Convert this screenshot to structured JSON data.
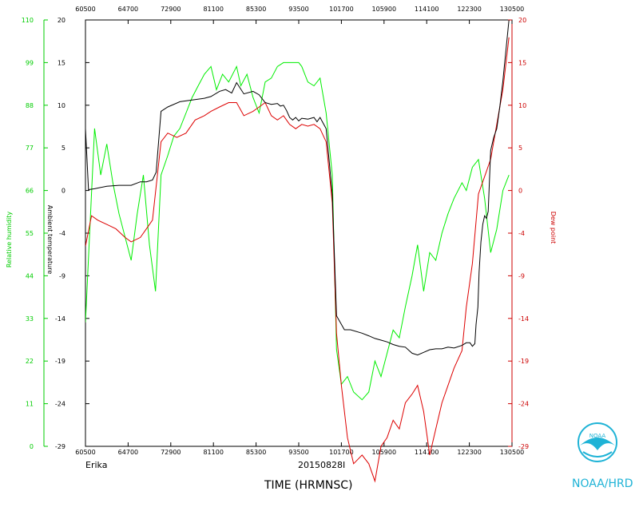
{
  "chart_data": {
    "type": "line",
    "title": "",
    "xlabel": "TIME (HRMNSC)",
    "storm_name": "Erika",
    "date_label": "20150828I",
    "x_ticks": [
      "60500",
      "64700",
      "72900",
      "81100",
      "85300",
      "93500",
      "101700",
      "105900",
      "114100",
      "122300",
      "130500"
    ],
    "xlim": [
      60500,
      130500
    ],
    "left_inner_axis": {
      "label": "Ambient temperature",
      "ticks": [
        "-29",
        "-24",
        "-19",
        "-14",
        "-9",
        "-4",
        "0",
        "5",
        "10",
        "15",
        "20"
      ],
      "range": [
        -29,
        20
      ],
      "color": "#000000"
    },
    "left_outer_axis": {
      "label": "Relative humidity",
      "ticks": [
        "0",
        "11",
        "22",
        "33",
        "44",
        "55",
        "66",
        "77",
        "88",
        "99",
        "110"
      ],
      "range": [
        0,
        110
      ],
      "color": "#00cc00"
    },
    "right_axis": {
      "label": "Dew point",
      "ticks": [
        "-29",
        "-24",
        "-19",
        "-14",
        "-9",
        "-4",
        "0",
        "5",
        "10",
        "15",
        "20"
      ],
      "range": [
        -29,
        20
      ],
      "color": "#cc0000"
    },
    "series": [
      {
        "key": "temperature",
        "color": "#000000",
        "x": [
          60500,
          61000,
          62000,
          64000,
          66000,
          68000,
          69500,
          70500,
          71500,
          72100,
          72900,
          74000,
          76000,
          78000,
          80000,
          81100,
          82500,
          83500,
          84500,
          85300,
          86500,
          88000,
          89000,
          90000,
          91000,
          92000,
          92500,
          93000,
          93500,
          94000,
          94500,
          95000,
          95500,
          96000,
          97000,
          98000,
          98500,
          99000,
          100000,
          101000,
          101700,
          103000,
          104000,
          105900,
          107000,
          108000,
          109000,
          110000,
          111000,
          112000,
          113000,
          114100,
          115000,
          116000,
          117000,
          118000,
          119000,
          120000,
          121000,
          122300,
          123000,
          123600,
          124000,
          124400,
          124600,
          124900,
          125100,
          125400,
          125700,
          126000,
          126300,
          126600,
          127000,
          127500,
          128000,
          128500,
          129000,
          129500,
          130000
        ],
        "y": [
          7.5,
          0.5,
          0.6,
          0.9,
          1.0,
          1.0,
          1.4,
          1.4,
          1.6,
          2.5,
          9.5,
          10.0,
          10.6,
          10.8,
          11.0,
          11.2,
          11.8,
          12.0,
          11.6,
          12.8,
          11.5,
          11.8,
          11.4,
          10.5,
          10.3,
          10.4,
          10.1,
          10.2,
          9.6,
          8.8,
          8.5,
          8.8,
          8.4,
          8.7,
          8.6,
          8.8,
          8.3,
          8.8,
          7.5,
          0.0,
          -14.0,
          -15.6,
          -15.6,
          -16.0,
          -16.3,
          -16.6,
          -16.8,
          -17.0,
          -17.3,
          -17.5,
          -17.6,
          -18.3,
          -18.5,
          -18.2,
          -17.9,
          -17.8,
          -17.8,
          -17.6,
          -17.7,
          -17.4,
          -17.1,
          -17.1,
          -17.5,
          -17.2,
          -15.0,
          -13.0,
          -9.0,
          -5.5,
          -3.5,
          -2.5,
          -2.8,
          -2.0,
          5.0,
          6.5,
          7.5,
          10.0,
          13.0,
          16.5,
          20.0
        ]
      },
      {
        "key": "relative_humidity",
        "color": "#00ee00",
        "x": [
          60500,
          62000,
          63000,
          64000,
          65000,
          66000,
          67000,
          68000,
          69000,
          70000,
          71000,
          72000,
          72900,
          74000,
          75000,
          76000,
          77000,
          78000,
          79000,
          80000,
          81100,
          82000,
          83000,
          84000,
          85300,
          86000,
          87000,
          88000,
          89000,
          90000,
          91000,
          92000,
          93000,
          93500,
          94000,
          94500,
          95000,
          95500,
          96000,
          97000,
          98000,
          99000,
          100000,
          101000,
          101700,
          102500,
          103500,
          104500,
          105900,
          107000,
          108000,
          109000,
          110000,
          111000,
          112000,
          113000,
          114100,
          115000,
          116000,
          117000,
          118000,
          119000,
          120000,
          121000,
          122300,
          123000,
          124000,
          125000,
          126000,
          127000,
          128000,
          129000,
          130000
        ],
        "y": [
          32,
          82,
          70,
          78,
          68,
          60,
          54,
          48,
          60,
          70,
          52,
          40,
          70,
          75,
          80,
          82,
          86,
          90,
          93,
          96,
          98,
          92,
          96,
          94,
          98,
          93,
          96,
          90,
          86,
          94,
          95,
          98,
          99,
          99,
          99,
          99,
          99,
          99,
          98,
          94,
          93,
          95,
          86,
          70,
          25,
          16,
          18,
          14,
          12,
          14,
          22,
          18,
          24,
          30,
          28,
          36,
          44,
          52,
          40,
          50,
          48,
          55,
          60,
          64,
          68,
          66,
          72,
          74,
          64,
          50,
          56,
          66,
          70
        ]
      },
      {
        "key": "dew_point",
        "color": "#dd0000",
        "x": [
          60500,
          61500,
          62500,
          64000,
          65500,
          67000,
          68000,
          69500,
          70500,
          71500,
          72900,
          74000,
          75500,
          77000,
          78500,
          80000,
          81100,
          82500,
          84000,
          85300,
          86500,
          88000,
          89000,
          90000,
          91000,
          92000,
          93000,
          93500,
          94000,
          95000,
          96000,
          97000,
          98000,
          99000,
          100000,
          101000,
          101700,
          102500,
          103500,
          104500,
          105900,
          107000,
          108000,
          109000,
          110000,
          111000,
          112000,
          113000,
          114100,
          115000,
          116000,
          117000,
          118000,
          119000,
          120000,
          121000,
          122300,
          123000,
          124000,
          125000,
          126000,
          127000,
          128000,
          129000,
          130000
        ],
        "y": [
          -6,
          -2.5,
          -3,
          -3.5,
          -4,
          -5,
          -5.5,
          -5,
          -4,
          -3,
          6,
          7,
          6.5,
          7,
          8.5,
          9,
          9.5,
          10,
          10.5,
          10.5,
          9,
          9.5,
          10,
          10.5,
          9,
          8.5,
          9,
          8.5,
          8,
          7.5,
          8,
          7.8,
          8,
          7.5,
          6,
          -1,
          -16,
          -22,
          -28,
          -31,
          -30,
          -31,
          -33,
          -29,
          -28,
          -26,
          -27,
          -24,
          -23,
          -22,
          -25,
          -30,
          -27,
          -24,
          -22,
          -20,
          -18,
          -13,
          -8,
          0,
          2,
          4,
          8,
          12,
          18
        ]
      }
    ]
  },
  "branding": {
    "agency_label": "NOAA/HRD",
    "logo_text": "NOAA"
  }
}
